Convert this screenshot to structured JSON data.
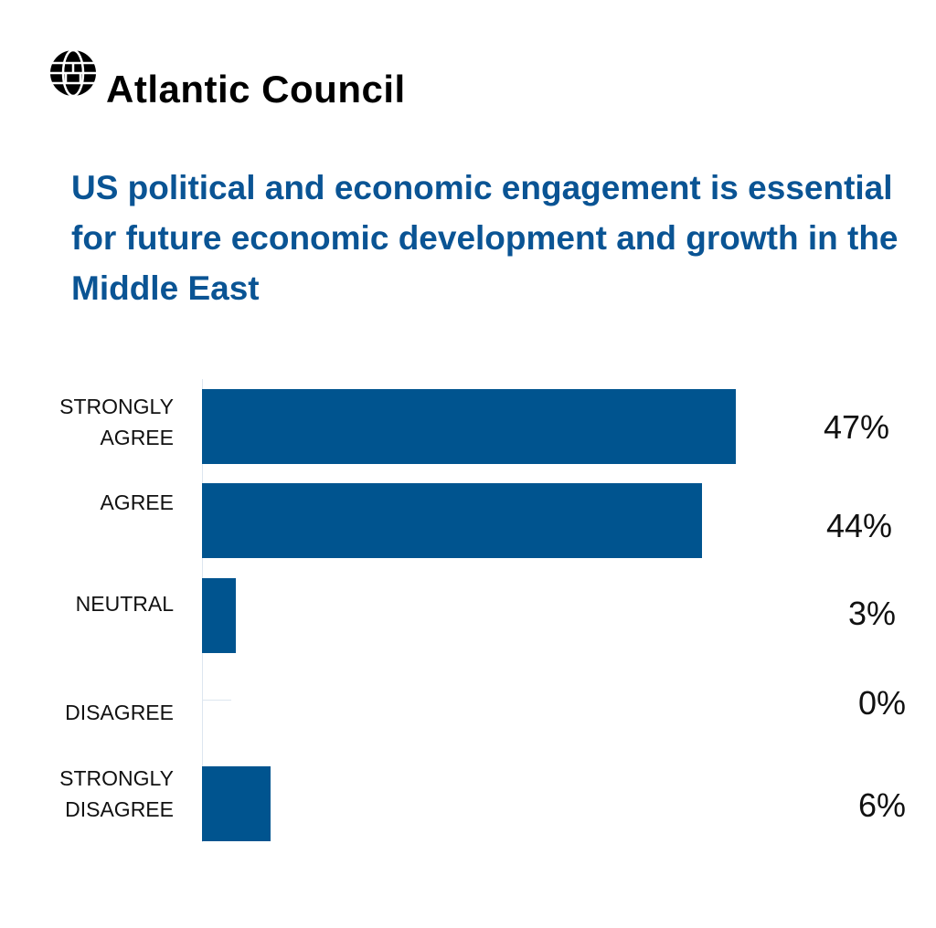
{
  "brand": {
    "name": "Atlantic Council",
    "logo_icon": "globe-icon"
  },
  "chart_data": {
    "type": "bar",
    "orientation": "horizontal",
    "title": "US political and economic engagement is essential for future economic development and growth in the Middle East",
    "categories": [
      "STRONGLY\nAGREE",
      "AGREE",
      "NEUTRAL",
      "DISAGREE",
      "STRONGLY\nDISAGREE"
    ],
    "values": [
      47,
      44,
      3,
      0,
      6
    ],
    "value_labels": [
      "47%",
      "44%",
      "3%",
      "0%",
      "6%"
    ],
    "xlabel": "",
    "ylabel": "",
    "xlim": [
      0,
      50
    ],
    "grid": false,
    "bar_color": "#00548f",
    "title_color": "#0a5494"
  }
}
